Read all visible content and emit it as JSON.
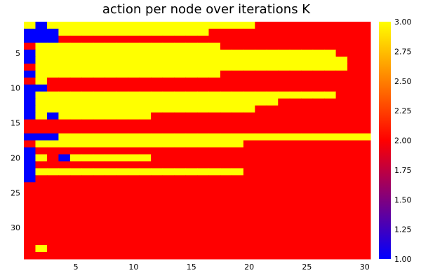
{
  "chart_data": {
    "type": "heatmap",
    "title": "action per node over iterations K",
    "xlabel": "",
    "ylabel": "",
    "x_range": [
      0.5,
      30.5
    ],
    "y_range": [
      0.5,
      34.5
    ],
    "y_reversed": true,
    "x_ticks": [
      5,
      10,
      15,
      20,
      25,
      30
    ],
    "y_ticks": [
      5,
      10,
      15,
      20,
      25,
      30
    ],
    "colorbar": {
      "range": [
        1.0,
        3.0
      ],
      "ticks": [
        "1.00",
        "1.25",
        "1.50",
        "1.75",
        "2.00",
        "2.25",
        "2.50",
        "2.75",
        "3.00"
      ],
      "colors": [
        "#0000ff",
        "#ff0000",
        "#ffff00"
      ]
    },
    "value_colors": {
      "1": "#0000ff",
      "2": "#ff0000",
      "3": "#ffff00"
    },
    "rows": [
      "313333333333333333332222222222",
      "111333333333333322222222222222",
      "111222222222222222222222222222",
      "233333333333333332222222222222",
      "133333333333333333333333333222",
      "133333333333333333333333333322",
      "233333333333333333333333333322",
      "133333333333333332222222222222",
      "232222222222222222222222222222",
      "112222222222222222222222222222",
      "133333333333333333333333333222",
      "133333333333333333333322222222",
      "133333333333333333332222222222",
      "131333333332222222222222222222",
      "222222222222222222222222222222",
      "222222222222222222222222222222",
      "111333333333333333333333333333",
      "233333333333333333322222222222",
      "122222222222222222222222222222",
      "132133333332222222222222222222",
      "122222222222222222222222222222",
      "133333333333333333322222222222",
      "122222222222222222222222222222",
      "222222222222222222222222222222",
      "222222222222222222222222222222",
      "222222222222222222222222222222",
      "222222222222222222222222222222",
      "222222222222222222222222222222",
      "222222222222222222222222222222",
      "222222222222222222222222222222",
      "222222222222222222222222222222",
      "222222222222222222222222222222",
      "232222222222222222222222222222",
      "222222222222222222222222222222"
    ]
  }
}
